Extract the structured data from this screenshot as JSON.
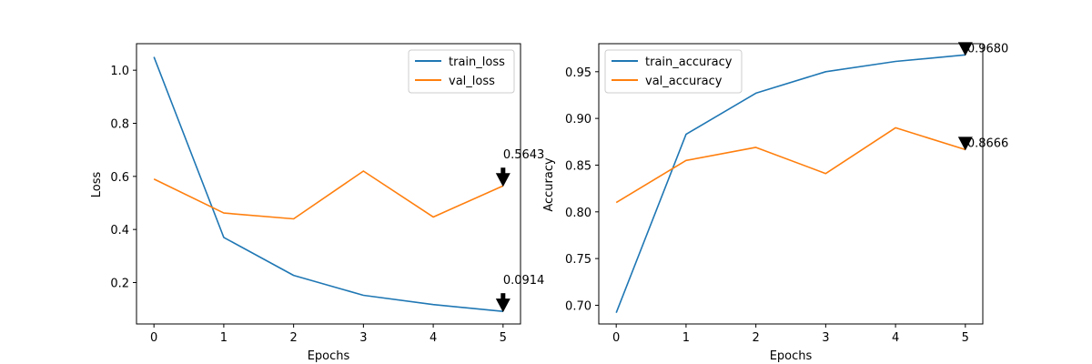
{
  "chart_data": [
    {
      "type": "line",
      "xlabel": "Epochs",
      "ylabel": "Loss",
      "x": [
        0,
        1,
        2,
        3,
        4,
        5
      ],
      "xticks": [
        "0",
        "1",
        "2",
        "3",
        "4",
        "5"
      ],
      "yticks": [
        "0.2",
        "0.4",
        "0.6",
        "0.8",
        "1.0"
      ],
      "ylim": [
        0.044,
        1.1
      ],
      "series": [
        {
          "name": "train_loss",
          "color": "#1f77b4",
          "values": [
            1.05,
            0.37,
            0.227,
            0.152,
            0.117,
            0.0914
          ]
        },
        {
          "name": "val_loss",
          "color": "#ff7f0e",
          "values": [
            0.59,
            0.462,
            0.44,
            0.62,
            0.447,
            0.5643
          ]
        }
      ],
      "annotations": [
        {
          "text": "0.5643",
          "x": 5,
          "y": 0.5643,
          "series": "val_loss"
        },
        {
          "text": "0.0914",
          "x": 5,
          "y": 0.0914,
          "series": "train_loss"
        }
      ],
      "legend": "top-right",
      "grid": false
    },
    {
      "type": "line",
      "xlabel": "Epochs",
      "ylabel": "Accuracy",
      "x": [
        0,
        1,
        2,
        3,
        4,
        5
      ],
      "xticks": [
        "0",
        "1",
        "2",
        "3",
        "4",
        "5"
      ],
      "yticks": [
        "0.70",
        "0.75",
        "0.80",
        "0.85",
        "0.90",
        "0.95"
      ],
      "ylim": [
        0.68,
        0.98
      ],
      "series": [
        {
          "name": "train_accuracy",
          "color": "#1f77b4",
          "values": [
            0.692,
            0.883,
            0.927,
            0.95,
            0.961,
            0.968
          ]
        },
        {
          "name": "val_accuracy",
          "color": "#ff7f0e",
          "values": [
            0.81,
            0.855,
            0.869,
            0.841,
            0.89,
            0.8666
          ]
        }
      ],
      "annotations": [
        {
          "text": "0.9680",
          "x": 5,
          "y": 0.968,
          "series": "train_accuracy"
        },
        {
          "text": "0.8666",
          "x": 5,
          "y": 0.8666,
          "series": "val_accuracy"
        }
      ],
      "legend": "top-left",
      "grid": false
    }
  ]
}
